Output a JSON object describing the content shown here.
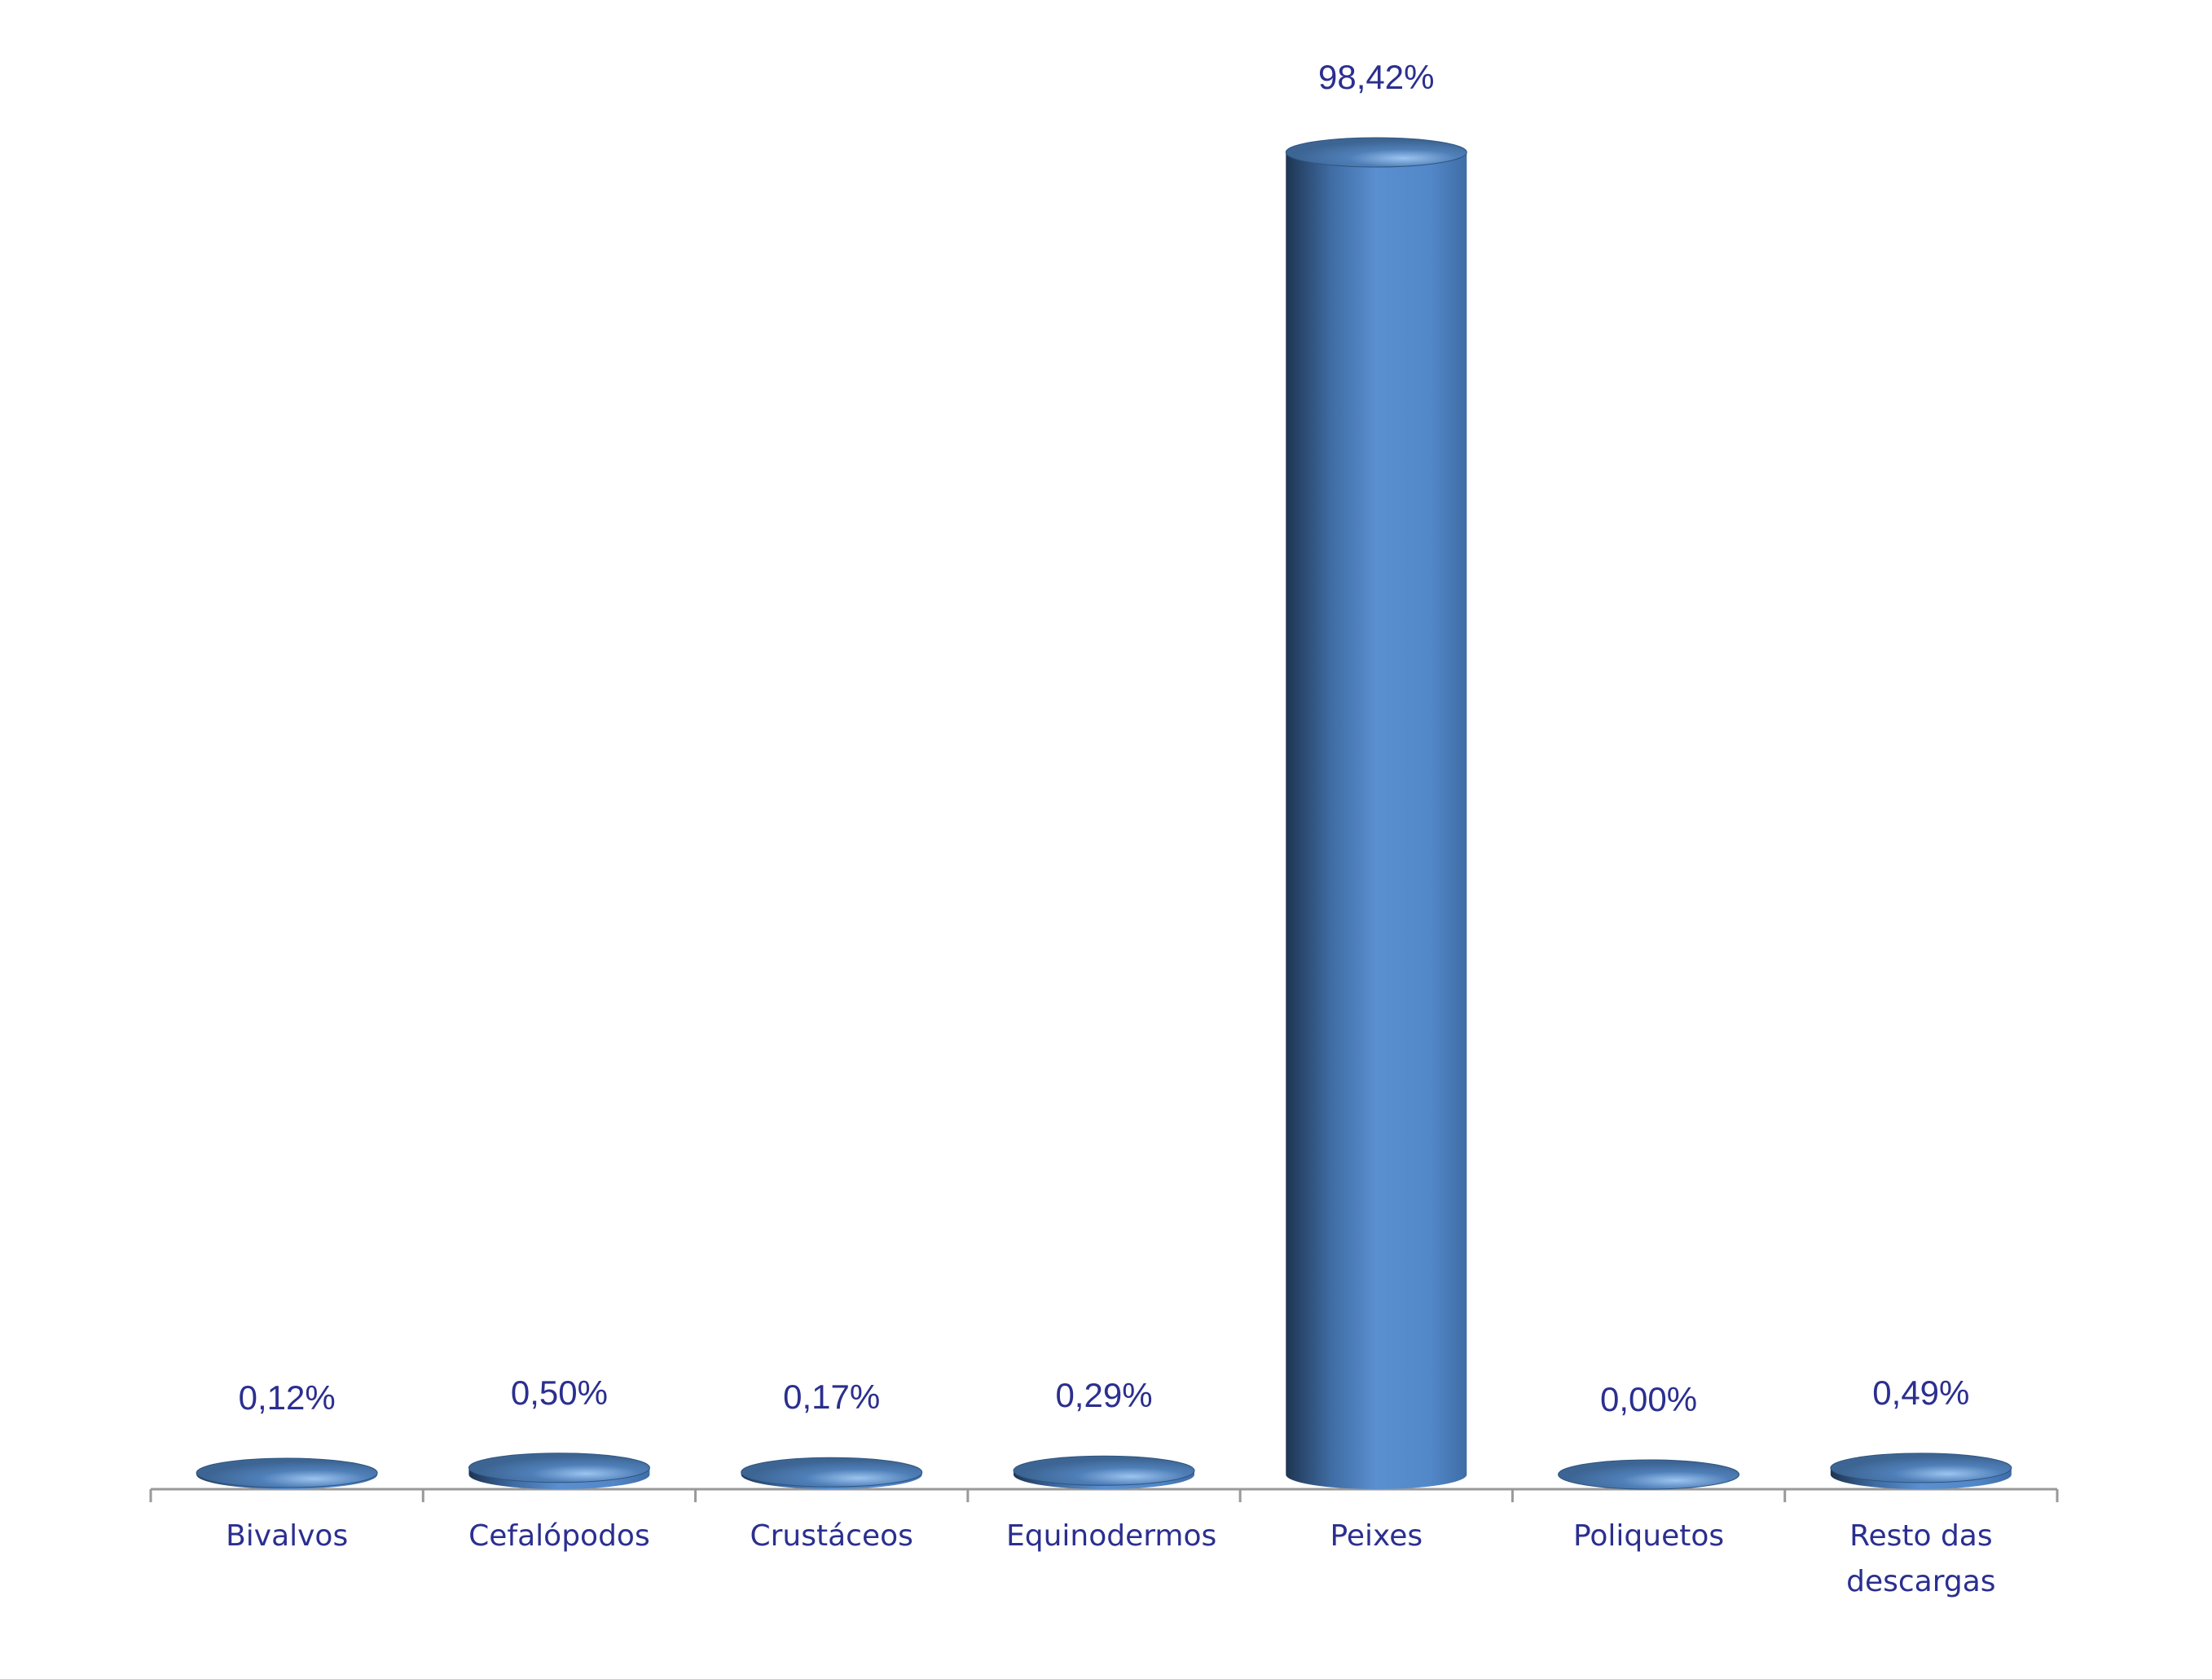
{
  "chart_data": {
    "type": "bar",
    "style": "cylinder",
    "categories": [
      "Bivalvos",
      "Cefalópodos",
      "Crustáceos",
      "Equinodermos",
      "Peixes",
      "Poliquetos",
      "Resto das descargas"
    ],
    "values": [
      0.12,
      0.5,
      0.17,
      0.29,
      98.42,
      0.0,
      0.49
    ],
    "value_labels": [
      "0,12%",
      "0,50%",
      "0,17%",
      "0,29%",
      "98,42%",
      "0,00%",
      "0,49%"
    ],
    "color": "#4f81bd"
  }
}
